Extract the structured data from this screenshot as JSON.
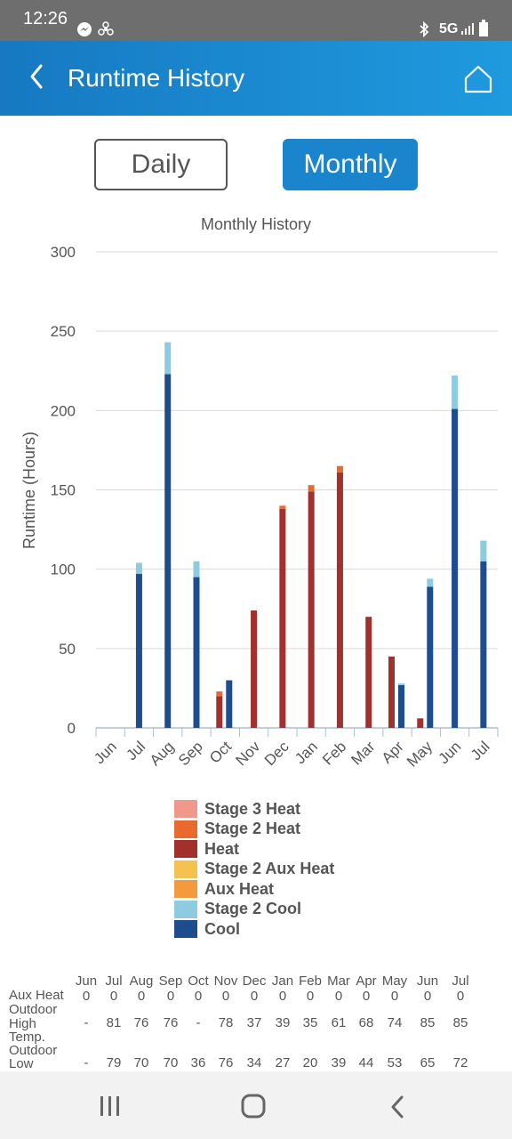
{
  "status_bar": {
    "time": "12:26",
    "network": "5G"
  },
  "app_bar": {
    "title": "Runtime History"
  },
  "toggle": {
    "daily": "Daily",
    "monthly": "Monthly",
    "selected": "Monthly"
  },
  "chart_data": {
    "type": "bar",
    "stacked": true,
    "title": "Monthly History",
    "xlabel": "",
    "ylabel": "Runtime (Hours)",
    "ylim": [
      0,
      300
    ],
    "yticks": [
      0,
      50,
      100,
      150,
      200,
      250,
      300
    ],
    "grid": true,
    "legend_position": "bottom",
    "categories": [
      "Jun",
      "Jul",
      "Aug",
      "Sep",
      "Oct",
      "Nov",
      "Dec",
      "Jan",
      "Feb",
      "Mar",
      "Apr",
      "May",
      "Jun",
      "Jul"
    ],
    "series": [
      {
        "name": "Stage 3 Heat",
        "color": "#f0998a",
        "values": [
          0,
          0,
          0,
          0,
          0,
          0,
          0,
          0,
          0,
          0,
          0,
          0,
          0,
          0
        ]
      },
      {
        "name": "Stage 2 Heat",
        "color": "#ea6a2e",
        "values": [
          0,
          0,
          0,
          0,
          3,
          0,
          2,
          4,
          4,
          0,
          0,
          0,
          0,
          0
        ]
      },
      {
        "name": "Heat",
        "color": "#a2302c",
        "values": [
          0,
          0,
          0,
          0,
          20,
          74,
          138,
          149,
          161,
          70,
          45,
          6,
          0,
          0
        ]
      },
      {
        "name": "Stage 2 Aux Heat",
        "color": "#f6c24f",
        "values": [
          0,
          0,
          0,
          0,
          0,
          0,
          0,
          0,
          0,
          0,
          0,
          0,
          0,
          0
        ]
      },
      {
        "name": "Aux Heat",
        "color": "#f39a3c",
        "values": [
          0,
          0,
          0,
          0,
          0,
          0,
          0,
          0,
          0,
          0,
          0,
          0,
          0,
          0
        ]
      },
      {
        "name": "Stage 2 Cool",
        "color": "#8ccbe0",
        "values": [
          0,
          7,
          20,
          10,
          0,
          0,
          0,
          0,
          0,
          0,
          1,
          5,
          21,
          13
        ]
      },
      {
        "name": "Cool",
        "color": "#1d4d8f",
        "values": [
          0,
          97,
          223,
          95,
          30,
          0,
          0,
          0,
          0,
          0,
          27,
          89,
          201,
          105
        ]
      }
    ]
  },
  "legend": [
    {
      "label": "Stage 3 Heat",
      "color": "#f0998a"
    },
    {
      "label": "Stage 2 Heat",
      "color": "#ea6a2e"
    },
    {
      "label": "Heat",
      "color": "#a2302c"
    },
    {
      "label": "Stage 2 Aux Heat",
      "color": "#f6c24f"
    },
    {
      "label": "Aux Heat",
      "color": "#f39a3c"
    },
    {
      "label": "Stage 2 Cool",
      "color": "#8ccbe0"
    },
    {
      "label": "Cool",
      "color": "#1d4d8f"
    }
  ],
  "table": {
    "months": [
      "Jun",
      "Jul",
      "Aug",
      "Sep",
      "Oct",
      "Nov",
      "Dec",
      "Jan",
      "Feb",
      "Mar",
      "Apr",
      "May",
      "Jun",
      "Jul"
    ],
    "rows": [
      {
        "label_lines": [
          "Aux Heat"
        ],
        "values": [
          "0",
          "0",
          "0",
          "0",
          "0",
          "0",
          "0",
          "0",
          "0",
          "0",
          "0",
          "0",
          "0",
          "0"
        ]
      },
      {
        "label_lines": [
          "Outdoor",
          "High",
          "Temp."
        ],
        "values": [
          "-",
          "81",
          "76",
          "76",
          "-",
          "78",
          "37",
          "39",
          "35",
          "61",
          "68",
          "74",
          "85",
          "85"
        ]
      },
      {
        "label_lines": [
          "Outdoor",
          "Low"
        ],
        "values": [
          "-",
          "79",
          "70",
          "70",
          "36",
          "76",
          "34",
          "27",
          "20",
          "39",
          "44",
          "53",
          "65",
          "72"
        ]
      }
    ]
  }
}
